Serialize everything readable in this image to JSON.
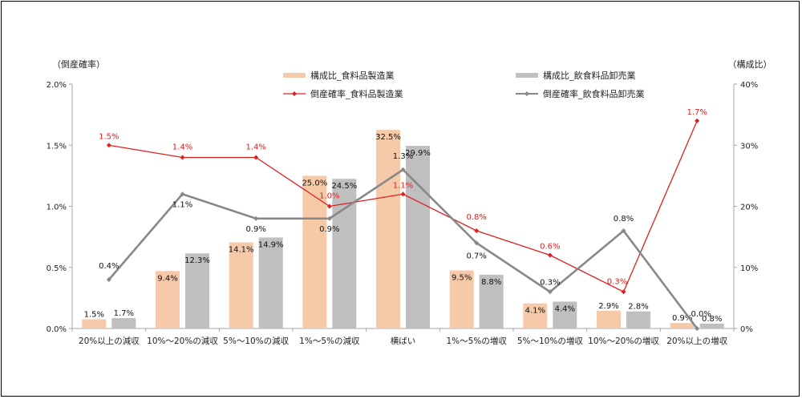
{
  "chart_data": {
    "type": "bar+line",
    "title": "",
    "left_axis": {
      "label": "（倒産確率）",
      "ticks": [
        "0.0%",
        "0.5%",
        "1.0%",
        "1.5%",
        "2.0%"
      ],
      "range": [
        0,
        2.0
      ]
    },
    "right_axis": {
      "label": "（構成比）",
      "ticks": [
        "0%",
        "10%",
        "20%",
        "30%",
        "40%"
      ],
      "range": [
        0,
        40
      ]
    },
    "categories": [
      "20%以上の減収",
      "10%～20%の減収",
      "5%～10%の減収",
      "1%～5%の減収",
      "横ばい",
      "1%～5%の増収",
      "5%～10%の増収",
      "10%～20%の増収",
      "20%以上の増収"
    ],
    "series": [
      {
        "name": "構成比_食料品製造業",
        "type": "bar",
        "axis": "right",
        "color": "#f6c9a8",
        "values": [
          1.5,
          9.4,
          14.1,
          25.0,
          32.5,
          9.5,
          4.1,
          2.9,
          0.9
        ],
        "labels": [
          "1.5%",
          "9.4%",
          "14.1%",
          "25.0%",
          "32.5%",
          "9.5%",
          "4.1%",
          "2.9%",
          "0.9%"
        ]
      },
      {
        "name": "構成比_飲食料品卸売業",
        "type": "bar",
        "axis": "right",
        "color": "#bfbfbf",
        "values": [
          1.7,
          12.3,
          14.9,
          24.5,
          29.9,
          8.8,
          4.4,
          2.8,
          0.8
        ],
        "labels": [
          "1.7%",
          "12.3%",
          "14.9%",
          "24.5%",
          "29.9%",
          "8.8%",
          "4.4%",
          "2.8%",
          "0.8%"
        ]
      },
      {
        "name": "倒産確率_食料品製造業",
        "type": "line",
        "axis": "left",
        "color": "#e02020",
        "values": [
          1.5,
          1.4,
          1.4,
          1.0,
          1.1,
          0.8,
          0.6,
          0.3,
          1.7
        ],
        "labels": [
          "1.5%",
          "1.4%",
          "1.4%",
          "1.0%",
          "1.1%",
          "0.8%",
          "0.6%",
          "0.3%",
          "1.7%"
        ]
      },
      {
        "name": "倒産確率_飲食料品卸売業",
        "type": "line",
        "axis": "left",
        "color": "#888888",
        "values": [
          0.4,
          1.1,
          0.9,
          0.9,
          1.3,
          0.7,
          0.3,
          0.8,
          0.0
        ],
        "labels": [
          "0.4%",
          "1.1%",
          "0.9%",
          "0.9%",
          "1.3%",
          "0.7%",
          "0.3%",
          "0.8%",
          "0.0%"
        ]
      }
    ],
    "legend_position": "top",
    "grid": false
  }
}
